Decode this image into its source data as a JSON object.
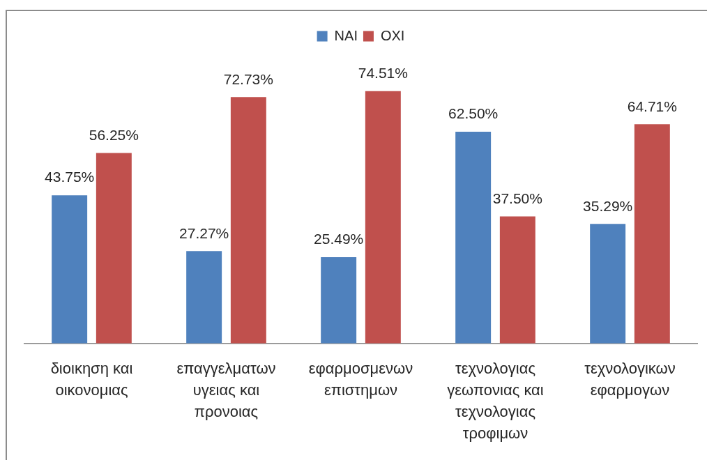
{
  "chart_data": {
    "type": "bar",
    "categories": [
      "διοικηση και οικονομιας",
      "επαγγελματων υγειας και προνοιας",
      "εφαρμοσμενων επιστημων",
      "τεχνολογιας γεωπονιας και τεχνολογιας τροφιμων",
      "τεχνολογικων εφαρμογων"
    ],
    "series": [
      {
        "name": "NAI",
        "color": "#4f81bd",
        "values": [
          43.75,
          27.27,
          25.49,
          62.5,
          35.29
        ],
        "value_labels": [
          "43.75%",
          "27.27%",
          "25.49%",
          "62.50%",
          "35.29%"
        ]
      },
      {
        "name": "OXI",
        "color": "#c0504d",
        "values": [
          56.25,
          72.73,
          74.51,
          37.5,
          64.71
        ],
        "value_labels": [
          "56.25%",
          "72.73%",
          "74.51%",
          "37.50%",
          "64.71%"
        ]
      }
    ],
    "legend": "top",
    "grid": false,
    "tick_labels": "x"
  }
}
